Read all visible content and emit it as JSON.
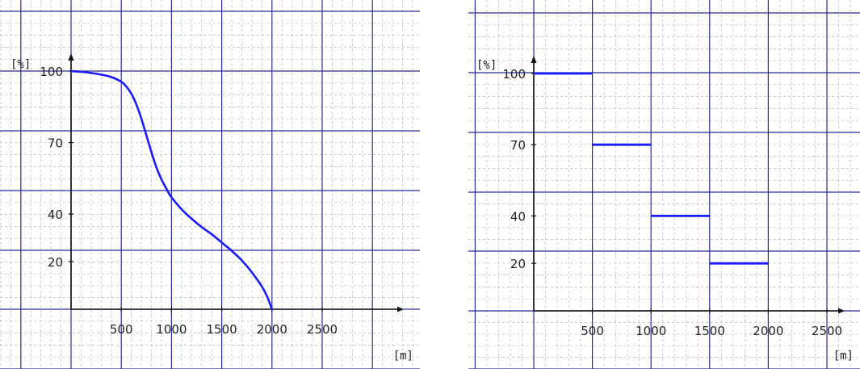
{
  "colors": {
    "curve": "#1a1aff",
    "major_grid": "#2b2b9a",
    "minor_grid": "#b8b8b8",
    "axis": "#111111"
  },
  "chart_data": [
    {
      "type": "line",
      "title": "",
      "xlabel": "[m]",
      "ylabel": "[%]",
      "xlim": [
        0,
        2500
      ],
      "ylim": [
        0,
        100
      ],
      "grid": true,
      "x_ticks": [
        "500",
        "1000",
        "1500",
        "2000",
        "2500"
      ],
      "y_ticks": [
        "20",
        "40",
        "70",
        "100"
      ],
      "series": [
        {
          "x": [
            0,
            100,
            200,
            300,
            400,
            500,
            550,
            600,
            650,
            700,
            750,
            800,
            850,
            900,
            950,
            1000,
            1100,
            1200,
            1300,
            1400,
            1500,
            1600,
            1700,
            1800,
            1900,
            1950,
            2000
          ],
          "y": [
            100,
            99.7,
            99.2,
            98.5,
            97.5,
            95.5,
            93.5,
            90.5,
            86,
            80,
            73,
            66,
            59.5,
            54.5,
            50.5,
            47,
            42,
            38,
            34.5,
            31.5,
            28,
            24.5,
            20.5,
            15.5,
            9.5,
            5.5,
            0
          ]
        }
      ]
    },
    {
      "type": "line",
      "title": "",
      "xlabel": "[m]",
      "ylabel": "[%]",
      "xlim": [
        0,
        2500
      ],
      "ylim": [
        0,
        100
      ],
      "grid": true,
      "x_ticks": [
        "500",
        "1000",
        "1500",
        "2000",
        "2500"
      ],
      "y_ticks": [
        "20",
        "40",
        "70",
        "100"
      ],
      "segments": [
        {
          "x_start": 0,
          "x_end": 500,
          "y": 100
        },
        {
          "x_start": 500,
          "x_end": 1000,
          "y": 70
        },
        {
          "x_start": 1000,
          "x_end": 1500,
          "y": 40
        },
        {
          "x_start": 1500,
          "x_end": 2000,
          "y": 20
        }
      ]
    }
  ]
}
